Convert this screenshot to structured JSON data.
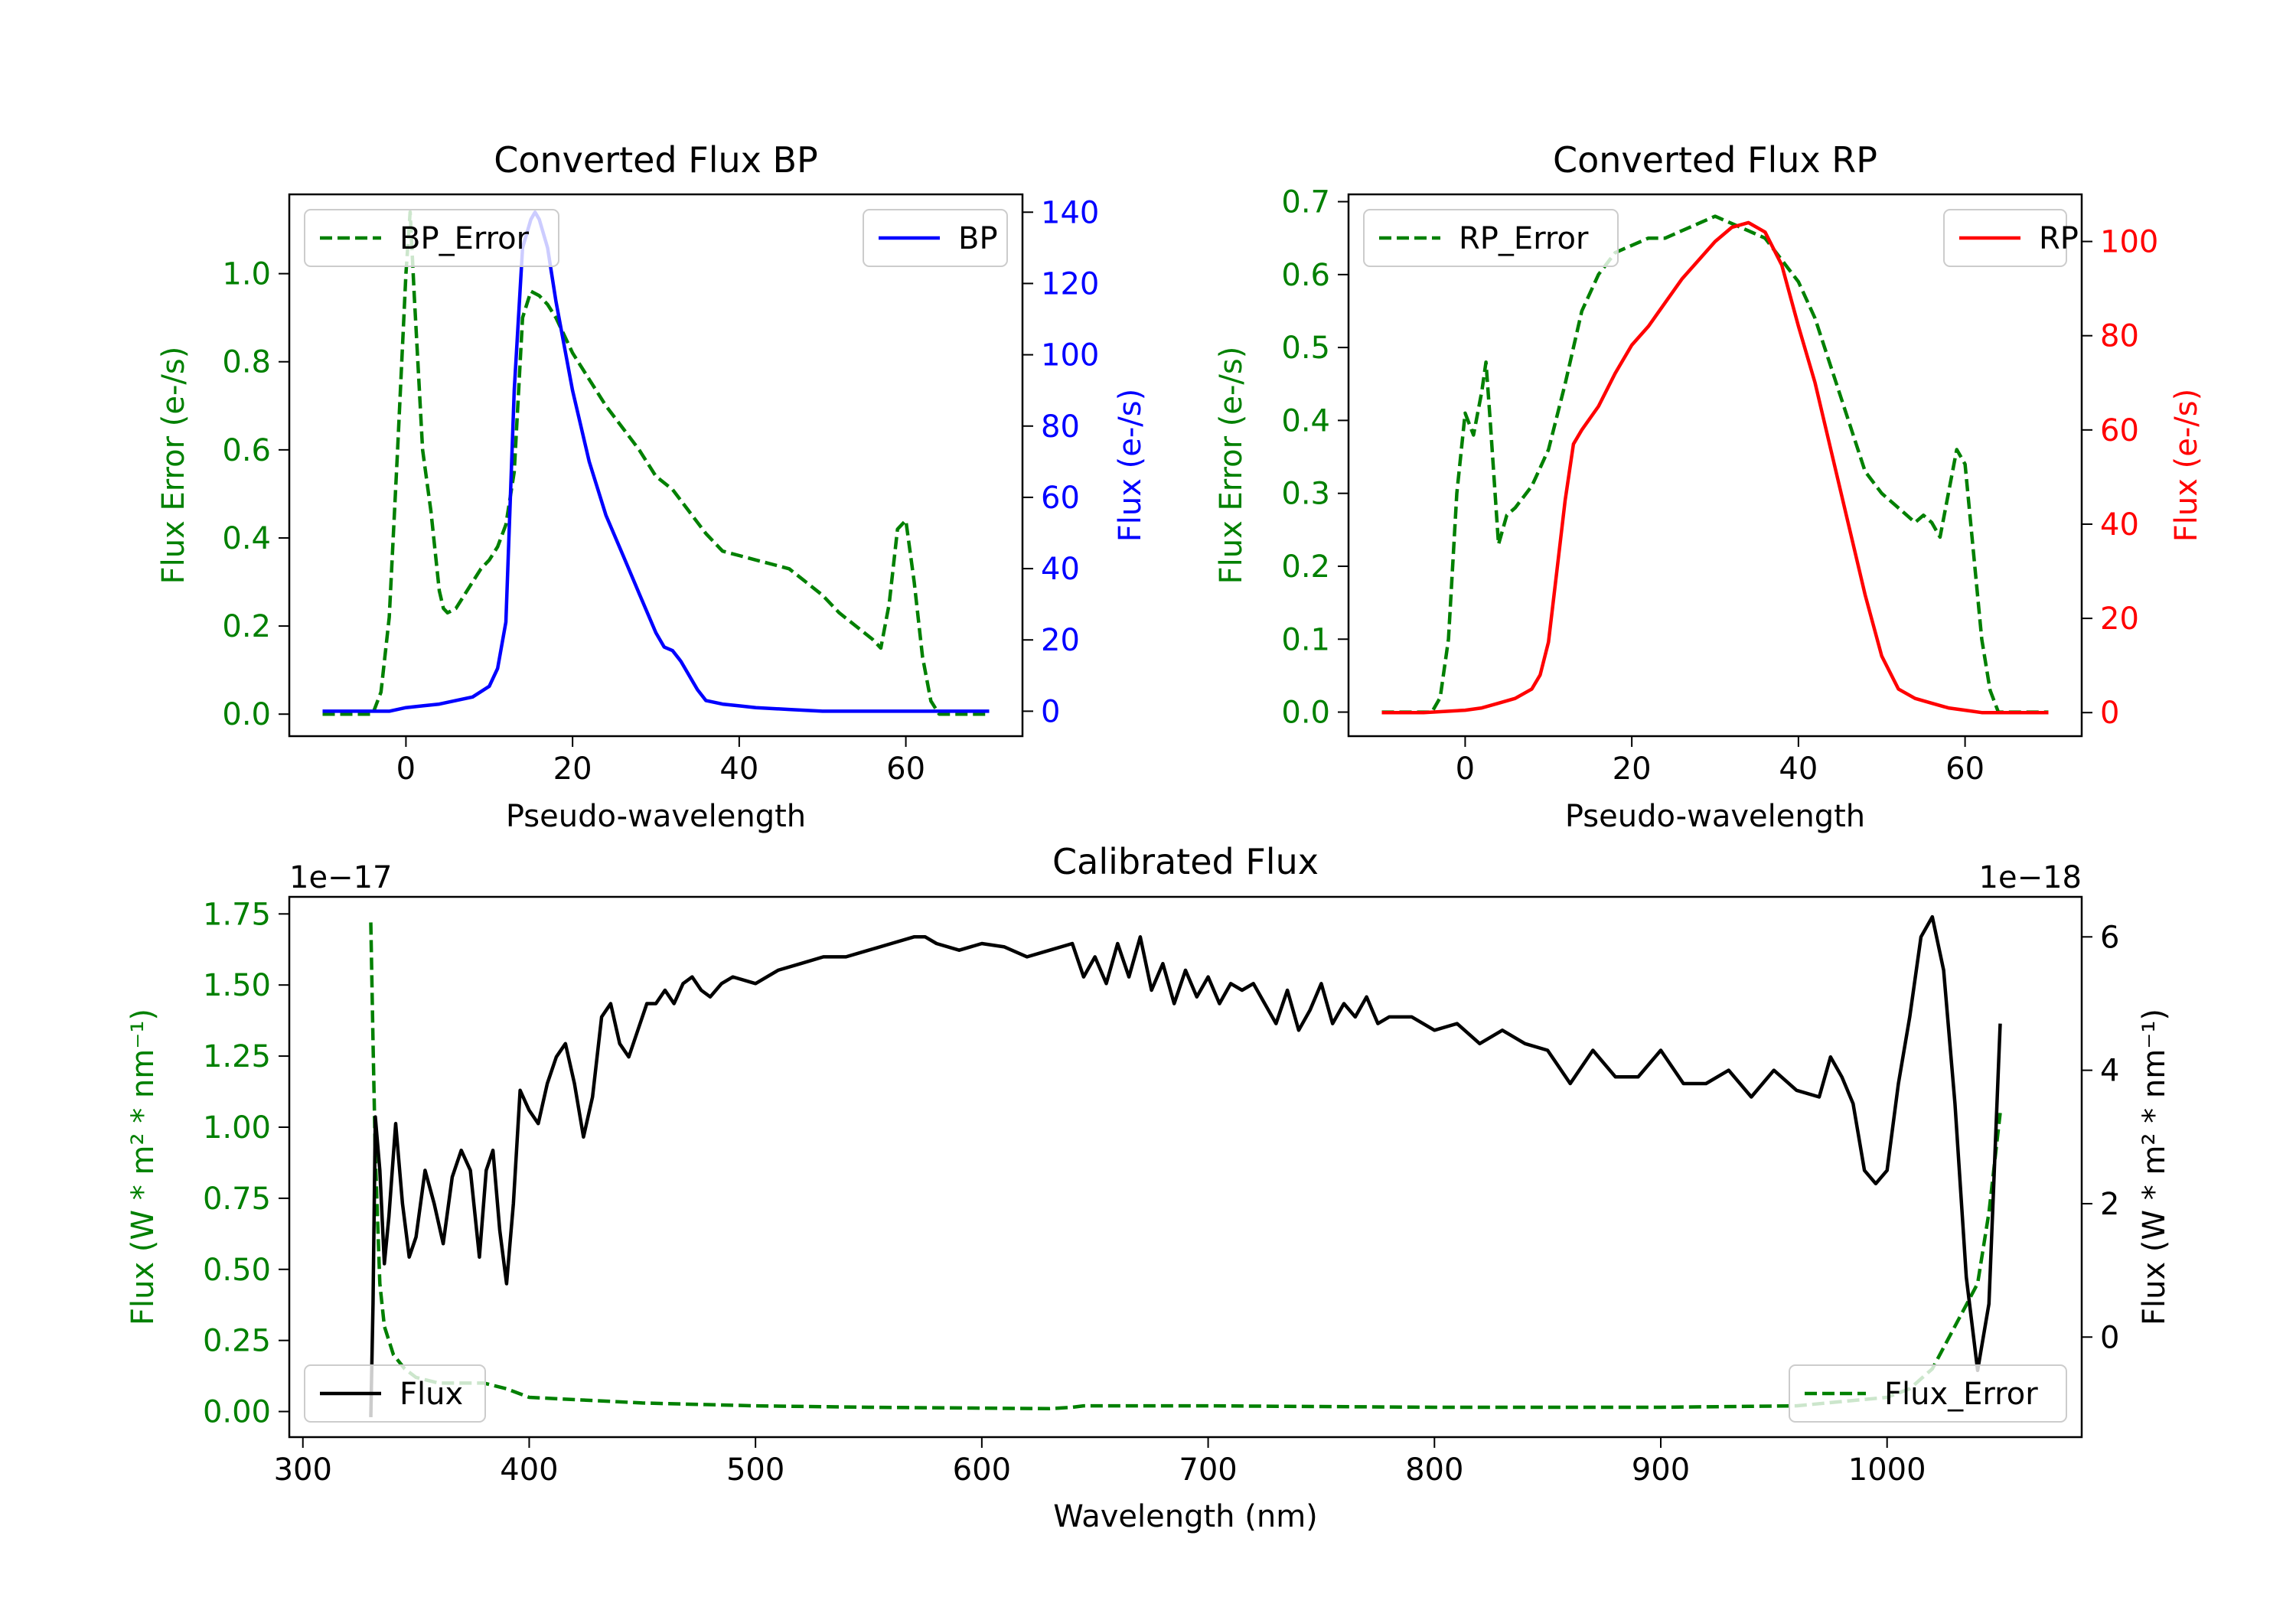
{
  "colors": {
    "green": "#008000",
    "blue": "#0000ff",
    "red": "#ff0000",
    "black": "#000000"
  },
  "chart_data": [
    {
      "type": "line",
      "title": "Converted Flux BP",
      "xlabel": "Pseudo-wavelength",
      "ylabel_left": "Flux Error (e-/s)",
      "ylabel_right": "Flux (e-/s)",
      "xlim": [
        -14,
        74
      ],
      "ylim_left": [
        -0.05,
        1.18
      ],
      "ylim_right": [
        -7,
        145
      ],
      "xticks": [
        0,
        20,
        40,
        60
      ],
      "yticks_left": [
        "0.0",
        "0.2",
        "0.4",
        "0.6",
        "0.8",
        "1.0"
      ],
      "yticks_right": [
        "0",
        "20",
        "40",
        "60",
        "80",
        "100",
        "120",
        "140"
      ],
      "legend_left": "BP_Error",
      "legend_right": "BP",
      "series_left": {
        "name": "BP_Error",
        "color": "#008000",
        "style": "dashed",
        "x": [
          -10,
          -4,
          -3,
          -2,
          -1,
          0,
          0.5,
          1,
          2,
          3,
          4,
          4.5,
          5,
          6,
          7,
          8,
          9,
          10,
          11,
          12,
          13,
          14,
          15,
          16,
          17,
          18,
          19,
          20,
          22,
          24,
          26,
          28,
          30,
          32,
          34,
          36,
          38,
          40,
          42,
          44,
          46,
          48,
          50,
          52,
          54,
          56,
          57,
          58,
          59,
          60,
          61,
          62,
          63,
          64,
          65,
          66,
          70
        ],
        "y": [
          0.0,
          0.0,
          0.05,
          0.22,
          0.6,
          1.0,
          1.14,
          0.95,
          0.6,
          0.46,
          0.28,
          0.24,
          0.23,
          0.24,
          0.27,
          0.3,
          0.33,
          0.35,
          0.38,
          0.43,
          0.55,
          0.9,
          0.96,
          0.95,
          0.93,
          0.9,
          0.86,
          0.82,
          0.76,
          0.7,
          0.65,
          0.6,
          0.54,
          0.51,
          0.46,
          0.41,
          0.37,
          0.36,
          0.35,
          0.34,
          0.33,
          0.3,
          0.27,
          0.23,
          0.2,
          0.17,
          0.15,
          0.25,
          0.42,
          0.44,
          0.3,
          0.13,
          0.03,
          0.0,
          0.0,
          0.0,
          0.0
        ]
      },
      "series_right": {
        "name": "BP",
        "color": "#0000ff",
        "style": "solid",
        "x": [
          -10,
          -2,
          0,
          2,
          4,
          6,
          8,
          10,
          11,
          12,
          13,
          14,
          15,
          15.5,
          16,
          17,
          18,
          20,
          22,
          24,
          26,
          28,
          30,
          31,
          32,
          33,
          34,
          35,
          36,
          38,
          40,
          42,
          46,
          50,
          55,
          60,
          65,
          70
        ],
        "y": [
          0,
          0,
          1,
          1.5,
          2,
          3,
          4,
          7,
          12,
          25,
          90,
          130,
          138,
          140,
          138,
          130,
          115,
          90,
          70,
          55,
          44,
          33,
          22,
          18,
          17,
          14,
          10,
          6,
          3,
          2,
          1.5,
          1,
          0.5,
          0,
          0,
          0,
          0,
          0
        ]
      }
    },
    {
      "type": "line",
      "title": "Converted Flux RP",
      "xlabel": "Pseudo-wavelength",
      "ylabel_left": "Flux Error (e-/s)",
      "ylabel_right": "Flux (e-/s)",
      "xlim": [
        -14,
        74
      ],
      "ylim_left": [
        -0.033,
        0.71
      ],
      "ylim_right": [
        -5,
        110
      ],
      "xticks": [
        0,
        20,
        40,
        60
      ],
      "yticks_left": [
        "0.0",
        "0.1",
        "0.2",
        "0.3",
        "0.4",
        "0.5",
        "0.6",
        "0.7"
      ],
      "yticks_right": [
        "0",
        "20",
        "40",
        "60",
        "80",
        "100"
      ],
      "legend_left": "RP_Error",
      "legend_right": "RP",
      "series_left": {
        "name": "RP_Error",
        "color": "#008000",
        "style": "dashed",
        "x": [
          -10,
          -4,
          -3,
          -2,
          -1,
          0,
          1,
          2,
          2.5,
          3,
          4,
          5,
          6,
          8,
          10,
          12,
          14,
          16,
          18,
          20,
          22,
          24,
          26,
          28,
          30,
          32,
          34,
          36,
          38,
          40,
          42,
          44,
          46,
          48,
          50,
          52,
          54,
          55,
          56,
          57,
          58,
          59,
          60,
          61,
          62,
          63,
          64,
          70
        ],
        "y": [
          0.0,
          0.0,
          0.02,
          0.1,
          0.3,
          0.41,
          0.38,
          0.44,
          0.48,
          0.4,
          0.23,
          0.27,
          0.28,
          0.31,
          0.36,
          0.45,
          0.55,
          0.6,
          0.63,
          0.64,
          0.65,
          0.65,
          0.66,
          0.67,
          0.68,
          0.67,
          0.66,
          0.65,
          0.62,
          0.59,
          0.54,
          0.47,
          0.4,
          0.33,
          0.3,
          0.28,
          0.26,
          0.27,
          0.26,
          0.24,
          0.3,
          0.36,
          0.34,
          0.22,
          0.1,
          0.03,
          0.0,
          0.0
        ]
      },
      "series_right": {
        "name": "RP",
        "color": "#ff0000",
        "style": "solid",
        "x": [
          -10,
          -5,
          0,
          2,
          4,
          6,
          8,
          9,
          10,
          11,
          12,
          13,
          14,
          16,
          18,
          20,
          22,
          24,
          26,
          28,
          30,
          32,
          34,
          36,
          38,
          40,
          42,
          44,
          46,
          48,
          50,
          52,
          54,
          56,
          58,
          60,
          62,
          64,
          66,
          70
        ],
        "y": [
          0,
          0,
          0.5,
          1,
          2,
          3,
          5,
          8,
          15,
          30,
          45,
          57,
          60,
          65,
          72,
          78,
          82,
          87,
          92,
          96,
          100,
          103,
          104,
          102,
          95,
          82,
          70,
          55,
          40,
          25,
          12,
          5,
          3,
          2,
          1,
          0.5,
          0,
          0,
          0,
          0
        ]
      }
    },
    {
      "type": "line",
      "title": "Calibrated Flux",
      "xlabel": "Wavelength (nm)",
      "ylabel_left": "Flux (W * m² * nm⁻¹)",
      "ylabel_right": "Flux (W * m² * nm⁻¹)",
      "offset_left": "1e−17",
      "offset_right": "1e−18",
      "xlim": [
        294,
        1086
      ],
      "ylim_left": [
        -0.09,
        1.81
      ],
      "ylim_right": [
        -1.5,
        6.6
      ],
      "xticks": [
        300,
        400,
        500,
        600,
        700,
        800,
        900,
        1000
      ],
      "yticks_left": [
        "0.00",
        "0.25",
        "0.50",
        "0.75",
        "1.00",
        "1.25",
        "1.50",
        "1.75"
      ],
      "yticks_right": [
        "0",
        "2",
        "4",
        "6"
      ],
      "legend_left": "Flux",
      "legend_right": "Flux_Error",
      "series_left": {
        "name": "Flux_Error",
        "color": "#008000",
        "style": "dashed",
        "x": [
          330,
          331,
          332,
          334,
          336,
          340,
          345,
          350,
          360,
          370,
          380,
          390,
          400,
          425,
          450,
          500,
          550,
          600,
          630,
          640,
          645,
          700,
          800,
          900,
          960,
          1000,
          1010,
          1020,
          1030,
          1040,
          1045,
          1050
        ],
        "y": [
          1.72,
          1.3,
          0.9,
          0.45,
          0.3,
          0.2,
          0.15,
          0.12,
          0.1,
          0.1,
          0.1,
          0.08,
          0.05,
          0.04,
          0.03,
          0.02,
          0.015,
          0.012,
          0.01,
          0.015,
          0.02,
          0.02,
          0.015,
          0.015,
          0.02,
          0.05,
          0.08,
          0.15,
          0.3,
          0.45,
          0.7,
          1.05
        ]
      },
      "series_right": {
        "name": "Flux",
        "color": "#000000",
        "style": "solid",
        "x": [
          330,
          331,
          332,
          334,
          336,
          338,
          341,
          344,
          347,
          350,
          354,
          358,
          362,
          366,
          370,
          374,
          378,
          381,
          384,
          387,
          390,
          393,
          396,
          400,
          404,
          408,
          412,
          416,
          420,
          424,
          428,
          432,
          436,
          440,
          444,
          448,
          452,
          456,
          460,
          464,
          468,
          472,
          476,
          480,
          485,
          490,
          500,
          510,
          520,
          530,
          540,
          550,
          560,
          570,
          575,
          580,
          590,
          600,
          610,
          620,
          630,
          640,
          645,
          650,
          655,
          660,
          665,
          670,
          675,
          680,
          685,
          690,
          695,
          700,
          705,
          710,
          715,
          720,
          725,
          730,
          735,
          740,
          745,
          750,
          755,
          760,
          765,
          770,
          775,
          780,
          790,
          800,
          810,
          820,
          830,
          840,
          850,
          860,
          870,
          880,
          890,
          900,
          910,
          920,
          930,
          940,
          950,
          960,
          970,
          975,
          980,
          985,
          990,
          995,
          1000,
          1005,
          1010,
          1015,
          1020,
          1025,
          1030,
          1035,
          1040,
          1045,
          1050
        ],
        "y": [
          -1.2,
          0.5,
          3.3,
          2.5,
          1.1,
          1.8,
          3.2,
          2.0,
          1.2,
          1.5,
          2.5,
          2.0,
          1.4,
          2.4,
          2.8,
          2.5,
          1.2,
          2.5,
          2.8,
          1.6,
          0.8,
          2.0,
          3.7,
          3.4,
          3.2,
          3.8,
          4.2,
          4.4,
          3.8,
          3.0,
          3.6,
          4.8,
          5.0,
          4.4,
          4.2,
          4.6,
          5.0,
          5.0,
          5.2,
          5.0,
          5.3,
          5.4,
          5.2,
          5.1,
          5.3,
          5.4,
          5.3,
          5.5,
          5.6,
          5.7,
          5.7,
          5.8,
          5.9,
          6.0,
          6.0,
          5.9,
          5.8,
          5.9,
          5.85,
          5.7,
          5.8,
          5.9,
          5.4,
          5.7,
          5.3,
          5.9,
          5.4,
          6.0,
          5.2,
          5.6,
          5.0,
          5.5,
          5.1,
          5.4,
          5.0,
          5.3,
          5.2,
          5.3,
          5.0,
          4.7,
          5.2,
          4.6,
          4.9,
          5.3,
          4.7,
          5.0,
          4.8,
          5.1,
          4.7,
          4.8,
          4.8,
          4.6,
          4.7,
          4.4,
          4.6,
          4.4,
          4.3,
          3.8,
          4.3,
          3.9,
          3.9,
          4.3,
          3.8,
          3.8,
          4.0,
          3.6,
          4.0,
          3.7,
          3.6,
          4.2,
          3.9,
          3.5,
          2.5,
          2.3,
          2.5,
          3.8,
          4.8,
          6.0,
          6.3,
          5.5,
          3.5,
          0.9,
          -0.5,
          0.5,
          4.7
        ]
      }
    }
  ]
}
